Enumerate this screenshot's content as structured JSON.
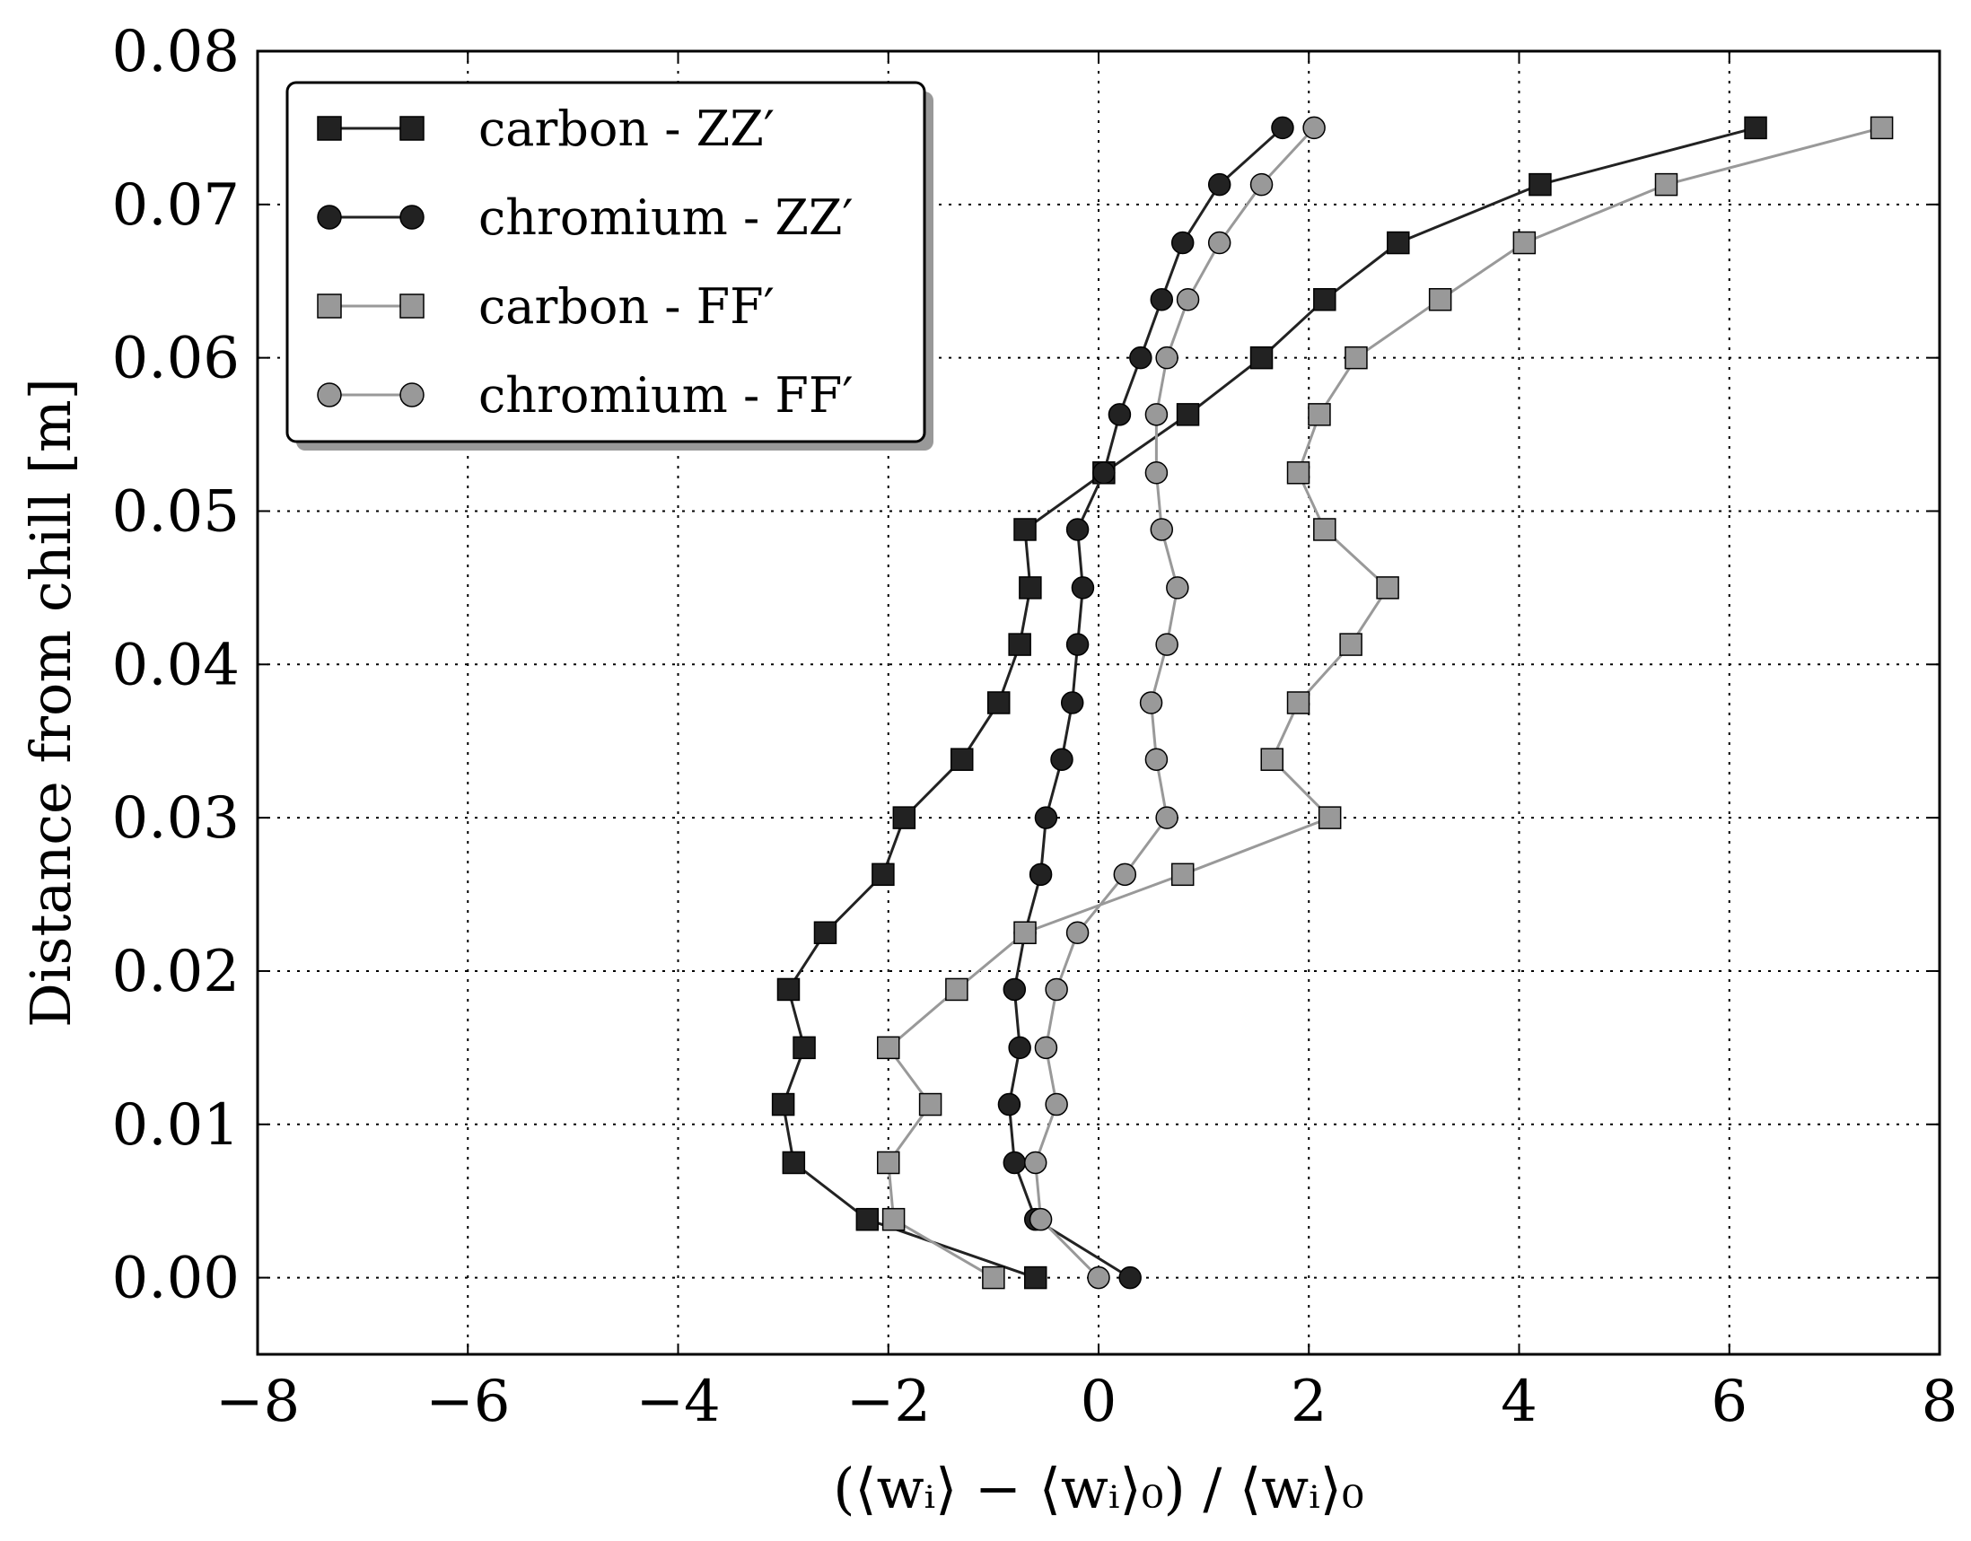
{
  "chart_data": {
    "type": "line",
    "xlabel": "(⟨wᵢ⟩ − ⟨wᵢ⟩₀) / ⟨wᵢ⟩₀",
    "ylabel": "Distance from chill [m]",
    "xlim": [
      -8,
      8
    ],
    "ylim": [
      -0.005,
      0.08
    ],
    "xticks": [
      -8,
      -6,
      -4,
      -2,
      0,
      2,
      4,
      6,
      8
    ],
    "xtick_labels": [
      "−8",
      "−6",
      "−4",
      "−2",
      "0",
      "2",
      "4",
      "6",
      "8"
    ],
    "yticks": [
      0.0,
      0.01,
      0.02,
      0.03,
      0.04,
      0.05,
      0.06,
      0.07,
      0.08
    ],
    "ytick_labels": [
      "0.00",
      "0.01",
      "0.02",
      "0.03",
      "0.04",
      "0.05",
      "0.06",
      "0.07",
      "0.08"
    ],
    "grid": true,
    "legend_position": "top-left",
    "series": [
      {
        "name": "carbon - ZZ′",
        "marker": "square",
        "color": "#222222",
        "points": [
          [
            -0.6,
            0.0
          ],
          [
            -2.2,
            0.0038
          ],
          [
            -2.9,
            0.0075
          ],
          [
            -3.0,
            0.0113
          ],
          [
            -2.8,
            0.015
          ],
          [
            -2.95,
            0.0188
          ],
          [
            -2.6,
            0.0225
          ],
          [
            -2.05,
            0.0263
          ],
          [
            -1.85,
            0.03
          ],
          [
            -1.3,
            0.0338
          ],
          [
            -0.95,
            0.0375
          ],
          [
            -0.75,
            0.0413
          ],
          [
            -0.65,
            0.045
          ],
          [
            -0.7,
            0.0488
          ],
          [
            0.05,
            0.0525
          ],
          [
            0.85,
            0.0563
          ],
          [
            1.55,
            0.06
          ],
          [
            2.15,
            0.0638
          ],
          [
            2.85,
            0.0675
          ],
          [
            4.2,
            0.0713
          ],
          [
            6.25,
            0.075
          ]
        ]
      },
      {
        "name": "chromium - ZZ′",
        "marker": "circle",
        "color": "#222222",
        "points": [
          [
            0.3,
            0.0
          ],
          [
            -0.6,
            0.0038
          ],
          [
            -0.8,
            0.0075
          ],
          [
            -0.85,
            0.0113
          ],
          [
            -0.75,
            0.015
          ],
          [
            -0.8,
            0.0188
          ],
          [
            -0.7,
            0.0225
          ],
          [
            -0.55,
            0.0263
          ],
          [
            -0.5,
            0.03
          ],
          [
            -0.35,
            0.0338
          ],
          [
            -0.25,
            0.0375
          ],
          [
            -0.2,
            0.0413
          ],
          [
            -0.15,
            0.045
          ],
          [
            -0.2,
            0.0488
          ],
          [
            0.05,
            0.0525
          ],
          [
            0.2,
            0.0563
          ],
          [
            0.4,
            0.06
          ],
          [
            0.6,
            0.0638
          ],
          [
            0.8,
            0.0675
          ],
          [
            1.15,
            0.0713
          ],
          [
            1.75,
            0.075
          ]
        ]
      },
      {
        "name": "carbon - FF′",
        "marker": "square",
        "color": "#999999",
        "points": [
          [
            -1.0,
            0.0
          ],
          [
            -1.95,
            0.0038
          ],
          [
            -2.0,
            0.0075
          ],
          [
            -1.6,
            0.0113
          ],
          [
            -2.0,
            0.015
          ],
          [
            -1.35,
            0.0188
          ],
          [
            -0.7,
            0.0225
          ],
          [
            0.8,
            0.0263
          ],
          [
            2.2,
            0.03
          ],
          [
            1.65,
            0.0338
          ],
          [
            1.9,
            0.0375
          ],
          [
            2.4,
            0.0413
          ],
          [
            2.75,
            0.045
          ],
          [
            2.15,
            0.0488
          ],
          [
            1.9,
            0.0525
          ],
          [
            2.1,
            0.0563
          ],
          [
            2.45,
            0.06
          ],
          [
            3.25,
            0.0638
          ],
          [
            4.05,
            0.0675
          ],
          [
            5.4,
            0.0713
          ],
          [
            7.45,
            0.075
          ]
        ]
      },
      {
        "name": "chromium - FF′",
        "marker": "circle",
        "color": "#999999",
        "points": [
          [
            0.0,
            0.0
          ],
          [
            -0.55,
            0.0038
          ],
          [
            -0.6,
            0.0075
          ],
          [
            -0.4,
            0.0113
          ],
          [
            -0.5,
            0.015
          ],
          [
            -0.4,
            0.0188
          ],
          [
            -0.2,
            0.0225
          ],
          [
            0.25,
            0.0263
          ],
          [
            0.65,
            0.03
          ],
          [
            0.55,
            0.0338
          ],
          [
            0.5,
            0.0375
          ],
          [
            0.65,
            0.0413
          ],
          [
            0.75,
            0.045
          ],
          [
            0.6,
            0.0488
          ],
          [
            0.55,
            0.0525
          ],
          [
            0.55,
            0.0563
          ],
          [
            0.65,
            0.06
          ],
          [
            0.85,
            0.0638
          ],
          [
            1.15,
            0.0675
          ],
          [
            1.55,
            0.0713
          ],
          [
            2.05,
            0.075
          ]
        ]
      }
    ]
  }
}
